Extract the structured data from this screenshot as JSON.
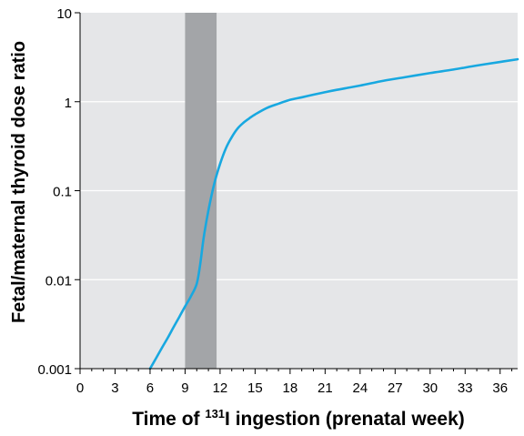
{
  "chart_data": {
    "type": "line",
    "xlabel_parts": [
      "Time of ",
      "131",
      "I ingestion (prenatal week)"
    ],
    "ylabel": "Fetal/maternal thyroid dose ratio",
    "x_ticks": [
      0,
      3,
      6,
      9,
      12,
      15,
      18,
      21,
      24,
      27,
      30,
      33,
      36
    ],
    "y_ticks": [
      0.001,
      0.01,
      0.1,
      1,
      10
    ],
    "y_tick_labels": [
      "0.001",
      "0.01",
      "0.1",
      "1",
      "10"
    ],
    "xlim": [
      0,
      37.5
    ],
    "ylim": [
      0.001,
      10
    ],
    "y_scale": "log",
    "grid": "horizontal",
    "highlight_band": {
      "x_start": 9,
      "x_end": 11.7
    },
    "colors": {
      "plot_bg": "#e5e6e8",
      "line": "#18a8e0",
      "band": "#a3a5a8",
      "grid": "#ffffff"
    },
    "series": [
      {
        "x": [
          6,
          6.5,
          7,
          7.5,
          8,
          8.5,
          9,
          9.5,
          10,
          10.3,
          10.6,
          11,
          11.5,
          12,
          12.5,
          13,
          13.5,
          14,
          14.5,
          15,
          16,
          17,
          18,
          19,
          20,
          21,
          22,
          24,
          26,
          28,
          30,
          32,
          34,
          36,
          37.5
        ],
        "y": [
          0.001,
          0.0013,
          0.0017,
          0.0022,
          0.0029,
          0.0038,
          0.005,
          0.0065,
          0.009,
          0.015,
          0.03,
          0.06,
          0.12,
          0.2,
          0.3,
          0.4,
          0.5,
          0.58,
          0.65,
          0.72,
          0.85,
          0.95,
          1.05,
          1.12,
          1.2,
          1.28,
          1.36,
          1.52,
          1.72,
          1.9,
          2.1,
          2.3,
          2.55,
          2.8,
          3.0
        ]
      }
    ]
  }
}
